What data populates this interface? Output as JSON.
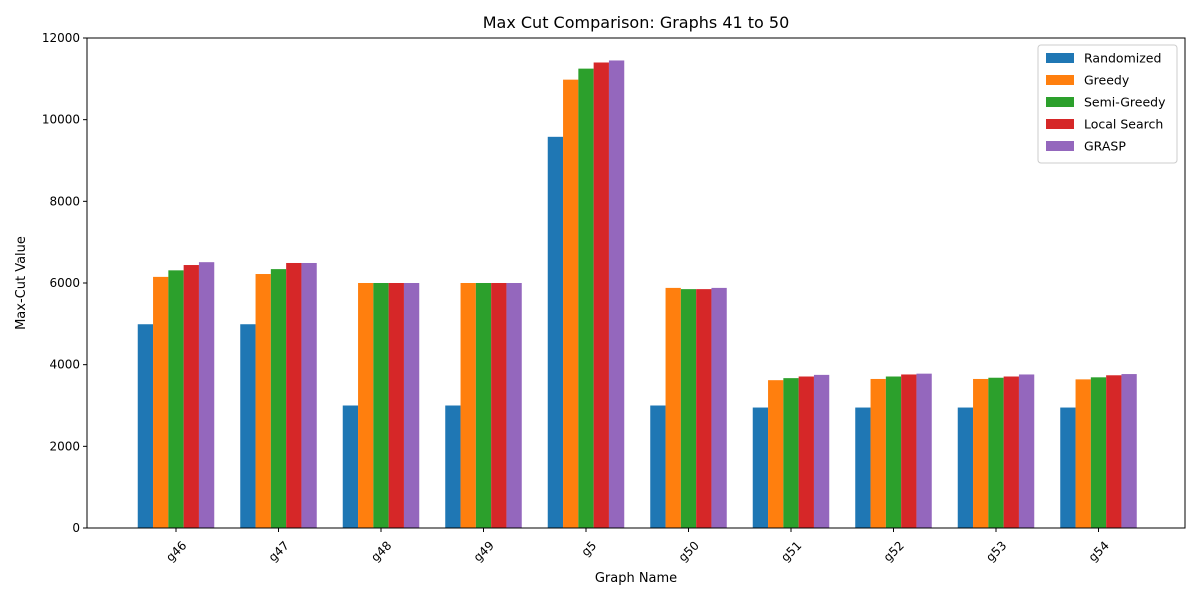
{
  "chart_data": {
    "type": "bar",
    "title": "Max Cut Comparison: Graphs 41 to 50",
    "xlabel": "Graph Name",
    "ylabel": "Max-Cut Value",
    "ylim": [
      0,
      12000
    ],
    "yticks": [
      0,
      2000,
      4000,
      6000,
      8000,
      10000,
      12000
    ],
    "categories": [
      "g46",
      "g47",
      "g48",
      "g49",
      "g5",
      "g50",
      "g51",
      "g52",
      "g53",
      "g54"
    ],
    "grid": false,
    "legend_position": "top-right",
    "series": [
      {
        "name": "Randomized",
        "color": "#1f77b4",
        "values": [
          4990,
          4990,
          3000,
          3000,
          9580,
          3000,
          2950,
          2950,
          2950,
          2950
        ]
      },
      {
        "name": "Greedy",
        "color": "#ff7f0e",
        "values": [
          6150,
          6220,
          6000,
          6000,
          10980,
          5880,
          3620,
          3650,
          3650,
          3640
        ]
      },
      {
        "name": "Semi-Greedy",
        "color": "#2ca02c",
        "values": [
          6310,
          6340,
          6000,
          6000,
          11250,
          5850,
          3670,
          3710,
          3680,
          3690
        ]
      },
      {
        "name": "Local Search",
        "color": "#d62728",
        "values": [
          6440,
          6490,
          6000,
          6000,
          11400,
          5850,
          3710,
          3760,
          3710,
          3740
        ]
      },
      {
        "name": "GRASP",
        "color": "#9467bd",
        "values": [
          6510,
          6490,
          6000,
          6000,
          11450,
          5880,
          3750,
          3780,
          3760,
          3770
        ]
      }
    ]
  }
}
